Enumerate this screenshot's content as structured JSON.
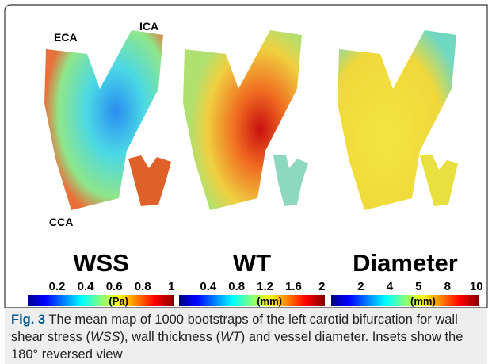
{
  "figure": {
    "labels": {
      "eca": "ECA",
      "ica": "ICA",
      "cca": "CCA"
    },
    "panels": [
      {
        "title": "WSS",
        "ticks": [
          "0.2",
          "0.4",
          "0.6",
          "0.8",
          "1"
        ],
        "unit": "(Pa)"
      },
      {
        "title": "WT",
        "ticks": [
          "0.4",
          "0.8",
          "1.2",
          "1.6",
          "2"
        ],
        "unit": "(mm)"
      },
      {
        "title": "Diameter",
        "ticks": [
          "2",
          "4",
          "5",
          "8",
          "10"
        ],
        "unit": "(mm)"
      }
    ],
    "caption": {
      "label": "Fig. 3",
      "parts": [
        " The mean map of 1000 bootstraps of the left carotid bifurcation for wall shear stress (",
        "WSS",
        "), wall thickness (",
        "WT",
        ") and vessel diameter. Insets show the 180° reversed view"
      ]
    }
  }
}
